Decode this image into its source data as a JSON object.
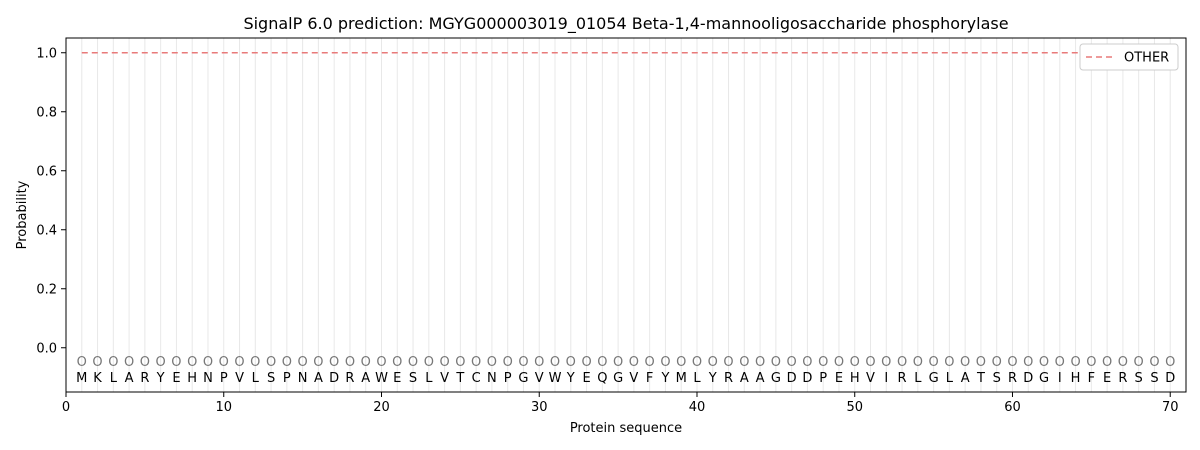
{
  "chart_data": {
    "type": "line",
    "title": "SignalP 6.0 prediction: MGYG000003019_01054 Beta-1,4-mannooligosaccharide phosphorylase",
    "xlabel": "Protein sequence",
    "ylabel": "Probability",
    "xlim": [
      0,
      71
    ],
    "ylim": [
      -0.15,
      1.05
    ],
    "x_ticks": [
      0,
      10,
      20,
      30,
      40,
      50,
      60,
      70
    ],
    "y_ticks": [
      0.0,
      0.2,
      0.4,
      0.6,
      0.8,
      1.0
    ],
    "y_tick_labels": [
      "0.0",
      "0.2",
      "0.4",
      "0.6",
      "0.8",
      "1.0"
    ],
    "sequence": [
      "M",
      "K",
      "L",
      "A",
      "R",
      "Y",
      "E",
      "H",
      "N",
      "P",
      "V",
      "L",
      "S",
      "P",
      "N",
      "A",
      "D",
      "R",
      "A",
      "W",
      "E",
      "S",
      "L",
      "V",
      "T",
      "C",
      "N",
      "P",
      "G",
      "V",
      "W",
      "Y",
      "E",
      "Q",
      "G",
      "V",
      "F",
      "Y",
      "M",
      "L",
      "Y",
      "R",
      "A",
      "A",
      "G",
      "D",
      "D",
      "P",
      "E",
      "H",
      "V",
      "I",
      "R",
      "L",
      "G",
      "L",
      "A",
      "T",
      "S",
      "R",
      "D",
      "G",
      "I",
      "H",
      "F",
      "E",
      "R",
      "S",
      "S",
      "D"
    ],
    "region_labels": [
      "O",
      "O",
      "O",
      "O",
      "O",
      "O",
      "O",
      "O",
      "O",
      "O",
      "O",
      "O",
      "O",
      "O",
      "O",
      "O",
      "O",
      "O",
      "O",
      "O",
      "O",
      "O",
      "O",
      "O",
      "O",
      "O",
      "O",
      "O",
      "O",
      "O",
      "O",
      "O",
      "O",
      "O",
      "O",
      "O",
      "O",
      "O",
      "O",
      "O",
      "O",
      "O",
      "O",
      "O",
      "O",
      "O",
      "O",
      "O",
      "O",
      "O",
      "O",
      "O",
      "O",
      "O",
      "O",
      "O",
      "O",
      "O",
      "O",
      "O",
      "O",
      "O",
      "O",
      "O",
      "O",
      "O",
      "O",
      "O",
      "O",
      "O"
    ],
    "series": [
      {
        "name": "OTHER",
        "style": "dashed",
        "color": "#e87a7a",
        "x_start": 1,
        "x_end": 70,
        "value": 1.0
      }
    ],
    "legend": {
      "position": "top-right",
      "entries": [
        "OTHER"
      ]
    },
    "grid": "vertical lines at each residue"
  }
}
